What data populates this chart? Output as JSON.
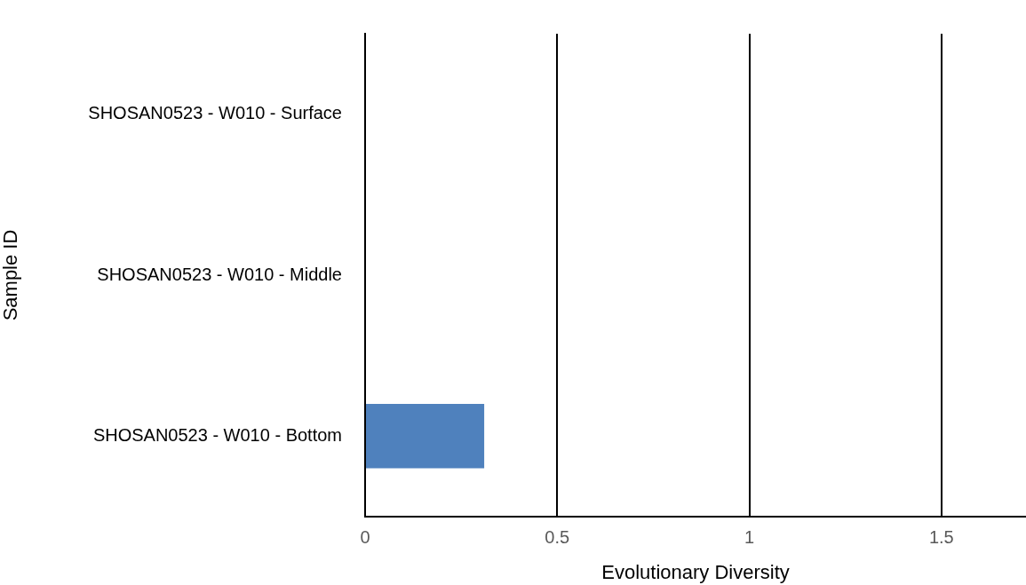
{
  "chart_data": {
    "type": "bar",
    "orientation": "horizontal",
    "xlabel": "Evolutionary Diversity",
    "ylabel": "Sample ID",
    "categories": [
      "SHOSAN0523 - W010 - Surface",
      "SHOSAN0523 - W010 - Middle",
      "SHOSAN0523 - W010 - Bottom"
    ],
    "values": [
      0,
      0,
      0.31
    ],
    "color": "#4f81bd",
    "xlim": [
      0,
      1.72
    ],
    "xticks": [
      0,
      0.5,
      1,
      1.5
    ],
    "grid": "x"
  }
}
